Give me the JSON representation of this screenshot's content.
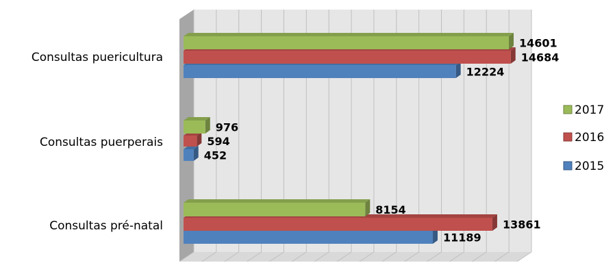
{
  "chart_data": {
    "type": "bar",
    "orientation": "horizontal",
    "three_d": true,
    "categories": [
      "Consultas pré-natal",
      "Consultas puerperais",
      "Consultas puericultura"
    ],
    "series": [
      {
        "name": "2015",
        "color": "#4F81BD",
        "values": [
          11189,
          452,
          12224
        ]
      },
      {
        "name": "2016",
        "color": "#C0504D",
        "values": [
          13861,
          594,
          14684
        ]
      },
      {
        "name": "2017",
        "color": "#9BBB59",
        "values": [
          8154,
          976,
          14601
        ]
      }
    ],
    "xlim": [
      0,
      15000
    ],
    "grid": true,
    "legend_position": "right"
  }
}
